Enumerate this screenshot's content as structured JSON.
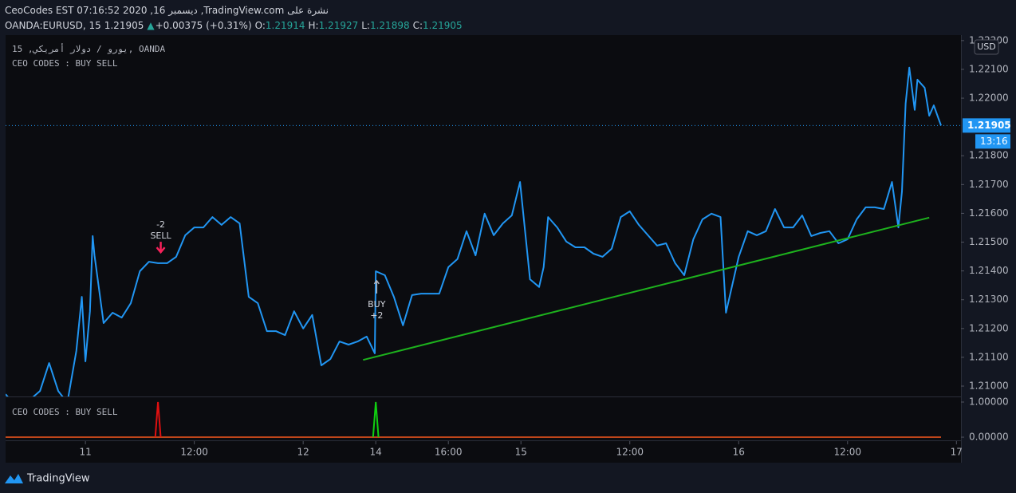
{
  "header": {
    "line1": "CeoCodes EST 07:16:52 2020 ,16 ديسمبر ,TradingView.com نشرة على",
    "symbol": "OANDA:EURUSD, 15",
    "last": "1.21905",
    "arrow": "▲",
    "change": "+0.00375 (+0.31%)",
    "o_label": "O:",
    "o": "1.21914",
    "h_label": "H:",
    "h": "1.21927",
    "l_label": "L:",
    "l": "1.21898",
    "c_label": "C:",
    "c": "1.21905"
  },
  "chart_data": [
    {
      "type": "line",
      "title": "يورو / دولار أمريكي, 15, OANDA",
      "subtitle": "CEO CODES : BUY SELL",
      "color": "#2196f3",
      "x": [
        -8.8,
        -8,
        -7,
        -6,
        -5,
        -4,
        -3,
        -2,
        -1,
        -0.4,
        0,
        0.5,
        0.8,
        1,
        2,
        3,
        4,
        5,
        6,
        7,
        8,
        9,
        10,
        11,
        12,
        13,
        14,
        15,
        16,
        17,
        18,
        19,
        20,
        21,
        22,
        23,
        24,
        25,
        26,
        27,
        28,
        29,
        30,
        31,
        31.9,
        32,
        33,
        34,
        35,
        36,
        37,
        38,
        39,
        40,
        41,
        42,
        43,
        44,
        45,
        46,
        47,
        47.9,
        49,
        50,
        50.5,
        51,
        52,
        53,
        54,
        55,
        56,
        57,
        58,
        59,
        60,
        61,
        62,
        63,
        64,
        65,
        66,
        67,
        68,
        69,
        70,
        70.6,
        72,
        73,
        74,
        75,
        76,
        77,
        78,
        79,
        80,
        81,
        82,
        83,
        84,
        85,
        86,
        87,
        88,
        88.9,
        89.6,
        90,
        90.4,
        90.8,
        91.4,
        91.7,
        92.5,
        93,
        93.5,
        94,
        94.3
      ],
      "values": [
        1.20972,
        1.20942,
        1.20928,
        1.20956,
        1.20983,
        1.2108,
        1.20983,
        1.20942,
        1.21122,
        1.2131,
        1.21086,
        1.2126,
        1.21521,
        1.21454,
        1.21219,
        1.21255,
        1.21238,
        1.21288,
        1.21399,
        1.21432,
        1.21427,
        1.21427,
        1.21449,
        1.21524,
        1.21551,
        1.21551,
        1.21587,
        1.2156,
        1.21587,
        1.21565,
        1.2131,
        1.21288,
        1.21191,
        1.21191,
        1.21177,
        1.2126,
        1.212,
        1.21247,
        1.21072,
        1.21094,
        1.21155,
        1.21144,
        1.21155,
        1.21172,
        1.21114,
        1.21399,
        1.21385,
        1.2131,
        1.21211,
        1.21316,
        1.21321,
        1.21321,
        1.21321,
        1.21413,
        1.21441,
        1.21538,
        1.21454,
        1.21599,
        1.21524,
        1.21565,
        1.21593,
        1.21709,
        1.21371,
        1.21344,
        1.21413,
        1.21587,
        1.21551,
        1.21502,
        1.21482,
        1.21482,
        1.2146,
        1.21449,
        1.21477,
        1.21587,
        1.21607,
        1.2156,
        1.21524,
        1.21488,
        1.21496,
        1.21427,
        1.21385,
        1.2151,
        1.21579,
        1.21599,
        1.21587,
        1.21255,
        1.21449,
        1.21538,
        1.21524,
        1.21538,
        1.21615,
        1.21551,
        1.21551,
        1.21593,
        1.21521,
        1.21532,
        1.21538,
        1.21496,
        1.2151,
        1.21579,
        1.21621,
        1.21621,
        1.21615,
        1.21709,
        1.21551,
        1.21676,
        1.21981,
        1.22106,
        1.21959,
        1.22064,
        1.22036,
        1.21939,
        1.21975,
        1.21931,
        1.21905
      ],
      "trendline": {
        "x": [
          30.6,
          93.0
        ],
        "values": [
          1.21091,
          1.21585
        ],
        "color": "#1db21d"
      },
      "annotations": [
        {
          "x": 8.3,
          "value": 1.21454,
          "label": "SELL",
          "amount": "-2",
          "color": "#f7215a",
          "direction": "down"
        },
        {
          "x": 32.1,
          "value": 1.21344,
          "label": "BUY",
          "amount": "+2",
          "color": "#b2b5be",
          "direction": "up"
        }
      ],
      "last_value": 1.21905,
      "last_value_time": "13:16",
      "currency": "USD",
      "xlim": [
        -8.8,
        96.5
      ],
      "xticks": [
        {
          "value": 0,
          "label": "11"
        },
        {
          "value": 12,
          "label": "12:00"
        },
        {
          "value": 24,
          "label": "12"
        },
        {
          "value": 32,
          "label": "14"
        },
        {
          "value": 40,
          "label": "16:00"
        },
        {
          "value": 48,
          "label": "15"
        },
        {
          "value": 60,
          "label": "12:00"
        },
        {
          "value": 72,
          "label": "16"
        },
        {
          "value": 84,
          "label": "12:00"
        },
        {
          "value": 96,
          "label": "17"
        }
      ],
      "ylim": [
        1.20964,
        1.22219
      ],
      "yticks": [
        {
          "value": 1.21,
          "label": "1.21000"
        },
        {
          "value": 1.211,
          "label": "1.21100"
        },
        {
          "value": 1.212,
          "label": "1.21200"
        },
        {
          "value": 1.213,
          "label": "1.21300"
        },
        {
          "value": 1.214,
          "label": "1.21400"
        },
        {
          "value": 1.215,
          "label": "1.21500"
        },
        {
          "value": 1.216,
          "label": "1.21600"
        },
        {
          "value": 1.217,
          "label": "1.21700"
        },
        {
          "value": 1.218,
          "label": "1.21800"
        },
        {
          "value": 1.22,
          "label": "1.22000"
        },
        {
          "value": 1.221,
          "label": "1.22100"
        },
        {
          "value": 1.222,
          "label": "1.22200"
        }
      ]
    },
    {
      "type": "line",
      "title": "CEO CODES : BUY SELL",
      "series": [
        {
          "color": "#c0461a",
          "x": [
            -8.8,
            94.3
          ],
          "values": [
            0,
            0
          ]
        },
        {
          "color": "#e01010",
          "x": [
            7.7,
            8.0,
            8.3
          ],
          "values": [
            0,
            1,
            0
          ]
        },
        {
          "color": "#10d010",
          "x": [
            31.7,
            32.0,
            32.3
          ],
          "values": [
            0,
            1,
            0
          ]
        }
      ],
      "ylim": [
        -0.09,
        1.136
      ],
      "yticks": [
        {
          "value": 0,
          "label": "0.00000"
        },
        {
          "value": 1,
          "label": "1.00000"
        }
      ]
    }
  ],
  "footer": {
    "brand": "TradingView"
  }
}
